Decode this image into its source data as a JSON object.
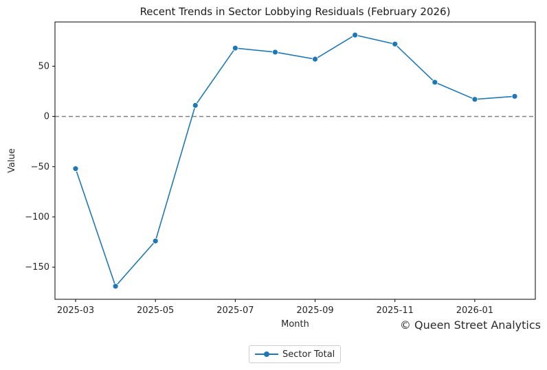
{
  "chart_data": {
    "type": "line",
    "title": "Recent Trends in Sector Lobbying Residuals (February 2026)",
    "xlabel": "Month",
    "ylabel": "Value",
    "x": [
      "2025-03",
      "2025-04",
      "2025-05",
      "2025-06",
      "2025-07",
      "2025-08",
      "2025-09",
      "2025-10",
      "2025-11",
      "2025-12",
      "2026-01",
      "2026-02"
    ],
    "x_tick_labels": [
      "2025-03",
      "2025-05",
      "2025-07",
      "2025-09",
      "2025-11",
      "2026-01"
    ],
    "y_ticks": [
      50,
      0,
      -50,
      -100,
      -150
    ],
    "y_tick_labels": [
      "50",
      "0",
      "−50",
      "−100",
      "−150"
    ],
    "ylim": [
      -182,
      94
    ],
    "series": [
      {
        "name": "Sector Total",
        "values": [
          -52,
          -169,
          -124,
          11,
          68,
          64,
          57,
          81,
          72,
          34,
          17,
          20
        ]
      }
    ],
    "reference_line": {
      "y": 0,
      "style": "dashed",
      "color": "#808080"
    },
    "grid": false,
    "legend_placement": "bottom-center",
    "colors": {
      "series": "#1f77b4",
      "axes": "#000000"
    }
  },
  "watermark": "© Queen Street Analytics"
}
